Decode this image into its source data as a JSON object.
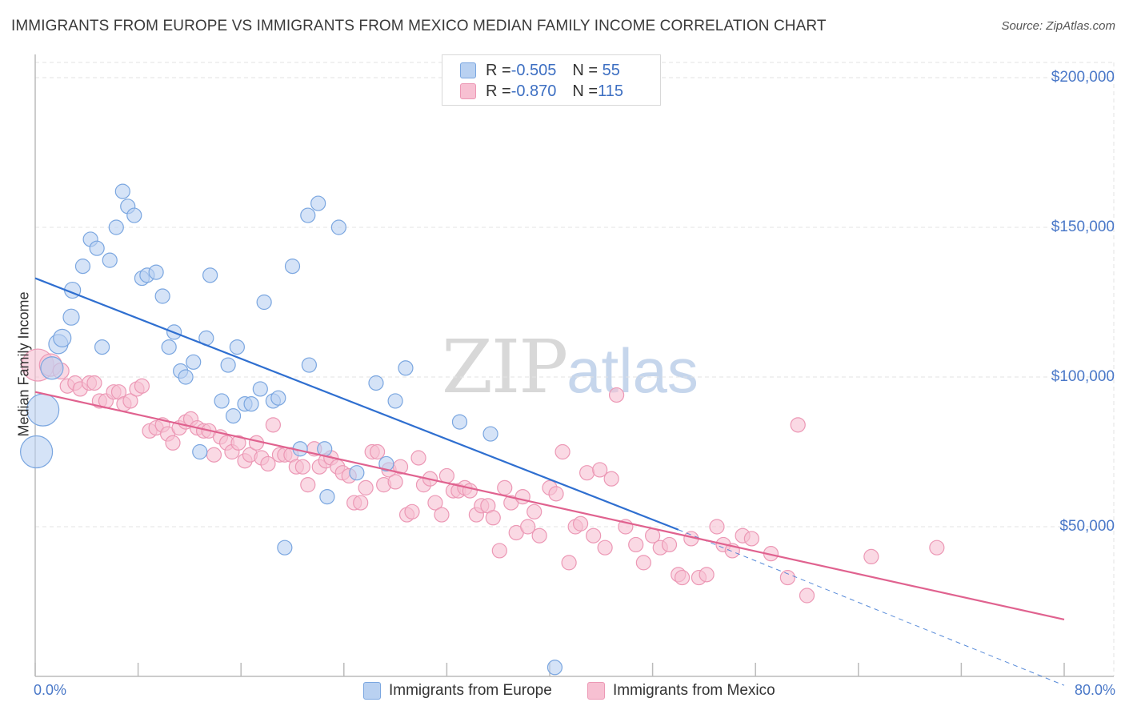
{
  "title": "IMMIGRANTS FROM EUROPE VS IMMIGRANTS FROM MEXICO MEDIAN FAMILY INCOME CORRELATION CHART",
  "source": "Source: ZipAtlas.com",
  "watermark": {
    "zip": "ZIP",
    "atlas": "atlas"
  },
  "legend": {
    "europe": {
      "r_label": "R = ",
      "r_value": "-0.505",
      "n_label": "N = ",
      "n_value": " 55"
    },
    "mexico": {
      "r_label": "R = ",
      "r_value": "-0.870",
      "n_label": "N = ",
      "n_value": "115"
    }
  },
  "colors": {
    "europe_fill": "#b9d1f1",
    "europe_stroke": "#7aa6e0",
    "europe_line": "#2f6fd0",
    "mexico_fill": "#f7c0d2",
    "mexico_stroke": "#ec98b5",
    "mexico_line": "#e0628f",
    "grid": "#e3e3e3",
    "tick_label": "#4a78c8"
  },
  "chart_data": {
    "type": "scatter",
    "title": "IMMIGRANTS FROM EUROPE VS IMMIGRANTS FROM MEXICO MEDIAN FAMILY INCOME CORRELATION CHART",
    "xlabel": "",
    "ylabel": "Median Family Income",
    "xlim": [
      0,
      80
    ],
    "ylim": [
      0,
      210000
    ],
    "x_tick_labels": [
      "0.0%",
      "80.0%"
    ],
    "y_ticks": [
      {
        "value": 50000,
        "label": "$50,000"
      },
      {
        "value": 100000,
        "label": "$100,000"
      },
      {
        "value": 150000,
        "label": "$150,000"
      },
      {
        "value": 200000,
        "label": "$200,000"
      }
    ],
    "grid": true,
    "legend_position": "top-center",
    "series": [
      {
        "name": "Immigrants from Europe",
        "r": -0.505,
        "n": 55,
        "trend": {
          "x1": 0,
          "y1": 133000,
          "x2": 50,
          "y2": 49000,
          "dashed_to": {
            "x": 80,
            "y": -3000
          }
        },
        "points": [
          [
            0.1,
            75000,
            1
          ],
          [
            0.6,
            89000,
            1
          ],
          [
            1.3,
            103000,
            0.7
          ],
          [
            1.8,
            111000,
            0.6
          ],
          [
            2.1,
            113000,
            0.55
          ],
          [
            2.8,
            120000,
            0.5
          ],
          [
            2.9,
            129000,
            0.5
          ],
          [
            3.7,
            137000,
            0.45
          ],
          [
            4.3,
            146000,
            0.45
          ],
          [
            4.8,
            143000,
            0.45
          ],
          [
            5.2,
            110000,
            0.45
          ],
          [
            5.8,
            139000,
            0.45
          ],
          [
            6.3,
            150000,
            0.45
          ],
          [
            6.8,
            162000,
            0.45
          ],
          [
            7.2,
            157000,
            0.45
          ],
          [
            7.7,
            154000,
            0.45
          ],
          [
            8.3,
            133000,
            0.45
          ],
          [
            8.7,
            134000,
            0.45
          ],
          [
            9.4,
            135000,
            0.45
          ],
          [
            9.9,
            127000,
            0.45
          ],
          [
            10.4,
            110000,
            0.45
          ],
          [
            10.8,
            115000,
            0.45
          ],
          [
            11.3,
            102000,
            0.45
          ],
          [
            11.7,
            100000,
            0.45
          ],
          [
            12.3,
            105000,
            0.45
          ],
          [
            12.8,
            75000,
            0.45
          ],
          [
            13.3,
            113000,
            0.45
          ],
          [
            13.6,
            134000,
            0.45
          ],
          [
            14.5,
            92000,
            0.45
          ],
          [
            15.0,
            104000,
            0.45
          ],
          [
            15.4,
            87000,
            0.45
          ],
          [
            15.7,
            110000,
            0.45
          ],
          [
            16.3,
            91000,
            0.45
          ],
          [
            16.8,
            91000,
            0.45
          ],
          [
            17.5,
            96000,
            0.45
          ],
          [
            17.8,
            125000,
            0.45
          ],
          [
            18.5,
            92000,
            0.45
          ],
          [
            18.9,
            93000,
            0.45
          ],
          [
            19.4,
            43000,
            0.45
          ],
          [
            20.0,
            137000,
            0.45
          ],
          [
            20.6,
            76000,
            0.45
          ],
          [
            21.2,
            154000,
            0.45
          ],
          [
            21.3,
            104000,
            0.45
          ],
          [
            22.0,
            158000,
            0.45
          ],
          [
            22.5,
            76000,
            0.45
          ],
          [
            22.7,
            60000,
            0.45
          ],
          [
            23.6,
            150000,
            0.45
          ],
          [
            25.0,
            68000,
            0.45
          ],
          [
            26.5,
            98000,
            0.45
          ],
          [
            27.3,
            71000,
            0.45
          ],
          [
            28.0,
            92000,
            0.45
          ],
          [
            28.8,
            103000,
            0.45
          ],
          [
            33.0,
            85000,
            0.45
          ],
          [
            35.4,
            81000,
            0.45
          ],
          [
            40.4,
            3000,
            0.45
          ]
        ]
      },
      {
        "name": "Immigrants from Mexico",
        "r": -0.87,
        "n": 115,
        "trend": {
          "x1": 0,
          "y1": 95000,
          "x2": 80,
          "y2": 19000
        },
        "points": [
          [
            0.2,
            104000,
            1
          ],
          [
            1.2,
            104000,
            0.7
          ],
          [
            2.0,
            102000,
            0.5
          ],
          [
            2.5,
            97000,
            0.45
          ],
          [
            3.1,
            98000,
            0.45
          ],
          [
            3.5,
            96000,
            0.45
          ],
          [
            4.2,
            98000,
            0.45
          ],
          [
            4.6,
            98000,
            0.45
          ],
          [
            5.0,
            92000,
            0.45
          ],
          [
            5.5,
            92000,
            0.45
          ],
          [
            6.1,
            95000,
            0.45
          ],
          [
            6.5,
            95000,
            0.45
          ],
          [
            6.9,
            91000,
            0.45
          ],
          [
            7.4,
            92000,
            0.45
          ],
          [
            7.9,
            96000,
            0.45
          ],
          [
            8.3,
            97000,
            0.45
          ],
          [
            8.9,
            82000,
            0.45
          ],
          [
            9.4,
            83000,
            0.45
          ],
          [
            9.9,
            84000,
            0.45
          ],
          [
            10.3,
            81000,
            0.45
          ],
          [
            10.7,
            78000,
            0.45
          ],
          [
            11.2,
            83000,
            0.45
          ],
          [
            11.7,
            85000,
            0.45
          ],
          [
            12.1,
            86000,
            0.45
          ],
          [
            12.6,
            83000,
            0.45
          ],
          [
            13.1,
            82000,
            0.45
          ],
          [
            13.5,
            82000,
            0.45
          ],
          [
            13.9,
            74000,
            0.45
          ],
          [
            14.4,
            80000,
            0.45
          ],
          [
            14.9,
            78000,
            0.45
          ],
          [
            15.3,
            75000,
            0.45
          ],
          [
            15.8,
            78000,
            0.45
          ],
          [
            16.3,
            72000,
            0.45
          ],
          [
            16.7,
            74000,
            0.45
          ],
          [
            17.2,
            78000,
            0.45
          ],
          [
            17.6,
            73000,
            0.45
          ],
          [
            18.1,
            71000,
            0.45
          ],
          [
            18.5,
            84000,
            0.45
          ],
          [
            19.0,
            74000,
            0.45
          ],
          [
            19.4,
            74000,
            0.45
          ],
          [
            19.9,
            74000,
            0.45
          ],
          [
            20.3,
            70000,
            0.45
          ],
          [
            20.8,
            70000,
            0.45
          ],
          [
            21.2,
            64000,
            0.45
          ],
          [
            21.7,
            76000,
            0.45
          ],
          [
            22.1,
            70000,
            0.45
          ],
          [
            22.6,
            72000,
            0.45
          ],
          [
            23.0,
            73000,
            0.45
          ],
          [
            23.5,
            70000,
            0.45
          ],
          [
            23.9,
            68000,
            0.45
          ],
          [
            24.4,
            67000,
            0.45
          ],
          [
            24.8,
            58000,
            0.45
          ],
          [
            25.3,
            58000,
            0.45
          ],
          [
            25.7,
            63000,
            0.45
          ],
          [
            26.2,
            75000,
            0.45
          ],
          [
            26.6,
            75000,
            0.45
          ],
          [
            27.1,
            64000,
            0.45
          ],
          [
            27.5,
            69000,
            0.45
          ],
          [
            28.0,
            65000,
            0.45
          ],
          [
            28.4,
            70000,
            0.45
          ],
          [
            28.9,
            54000,
            0.45
          ],
          [
            29.3,
            55000,
            0.45
          ],
          [
            29.8,
            73000,
            0.45
          ],
          [
            30.2,
            64000,
            0.45
          ],
          [
            30.7,
            66000,
            0.45
          ],
          [
            31.1,
            58000,
            0.45
          ],
          [
            31.6,
            54000,
            0.45
          ],
          [
            32.0,
            67000,
            0.45
          ],
          [
            32.5,
            62000,
            0.45
          ],
          [
            32.9,
            62000,
            0.45
          ],
          [
            33.4,
            63000,
            0.45
          ],
          [
            33.8,
            62000,
            0.45
          ],
          [
            34.3,
            54000,
            0.45
          ],
          [
            34.7,
            57000,
            0.45
          ],
          [
            35.2,
            57000,
            0.45
          ],
          [
            35.6,
            53000,
            0.45
          ],
          [
            36.1,
            42000,
            0.45
          ],
          [
            36.5,
            63000,
            0.45
          ],
          [
            37.0,
            58000,
            0.45
          ],
          [
            37.4,
            48000,
            0.45
          ],
          [
            37.9,
            60000,
            0.45
          ],
          [
            38.3,
            50000,
            0.45
          ],
          [
            38.8,
            55000,
            0.45
          ],
          [
            39.2,
            47000,
            0.45
          ],
          [
            40.0,
            63000,
            0.45
          ],
          [
            40.5,
            61000,
            0.45
          ],
          [
            41.0,
            75000,
            0.45
          ],
          [
            41.5,
            38000,
            0.45
          ],
          [
            42.0,
            50000,
            0.45
          ],
          [
            42.4,
            51000,
            0.45
          ],
          [
            42.9,
            68000,
            0.45
          ],
          [
            43.4,
            47000,
            0.45
          ],
          [
            43.9,
            69000,
            0.45
          ],
          [
            44.3,
            43000,
            0.45
          ],
          [
            44.8,
            66000,
            0.45
          ],
          [
            45.2,
            94000,
            0.45
          ],
          [
            45.9,
            50000,
            0.45
          ],
          [
            46.7,
            44000,
            0.45
          ],
          [
            47.3,
            38000,
            0.45
          ],
          [
            48.0,
            47000,
            0.45
          ],
          [
            48.6,
            43000,
            0.45
          ],
          [
            49.3,
            44000,
            0.45
          ],
          [
            50.0,
            34000,
            0.45
          ],
          [
            50.3,
            33000,
            0.45
          ],
          [
            51.0,
            46000,
            0.45
          ],
          [
            51.6,
            33000,
            0.45
          ],
          [
            52.2,
            34000,
            0.45
          ],
          [
            53.0,
            50000,
            0.45
          ],
          [
            53.5,
            44000,
            0.45
          ],
          [
            54.2,
            42000,
            0.45
          ],
          [
            55.0,
            47000,
            0.45
          ],
          [
            55.7,
            46000,
            0.45
          ],
          [
            57.2,
            41000,
            0.45
          ],
          [
            58.5,
            33000,
            0.45
          ],
          [
            59.3,
            84000,
            0.45
          ],
          [
            60.0,
            27000,
            0.45
          ],
          [
            65.0,
            40000,
            0.45
          ],
          [
            70.1,
            43000,
            0.45
          ]
        ]
      }
    ]
  },
  "bottom_legend": {
    "europe": "Immigrants from Europe",
    "mexico": "Immigrants from Mexico"
  }
}
